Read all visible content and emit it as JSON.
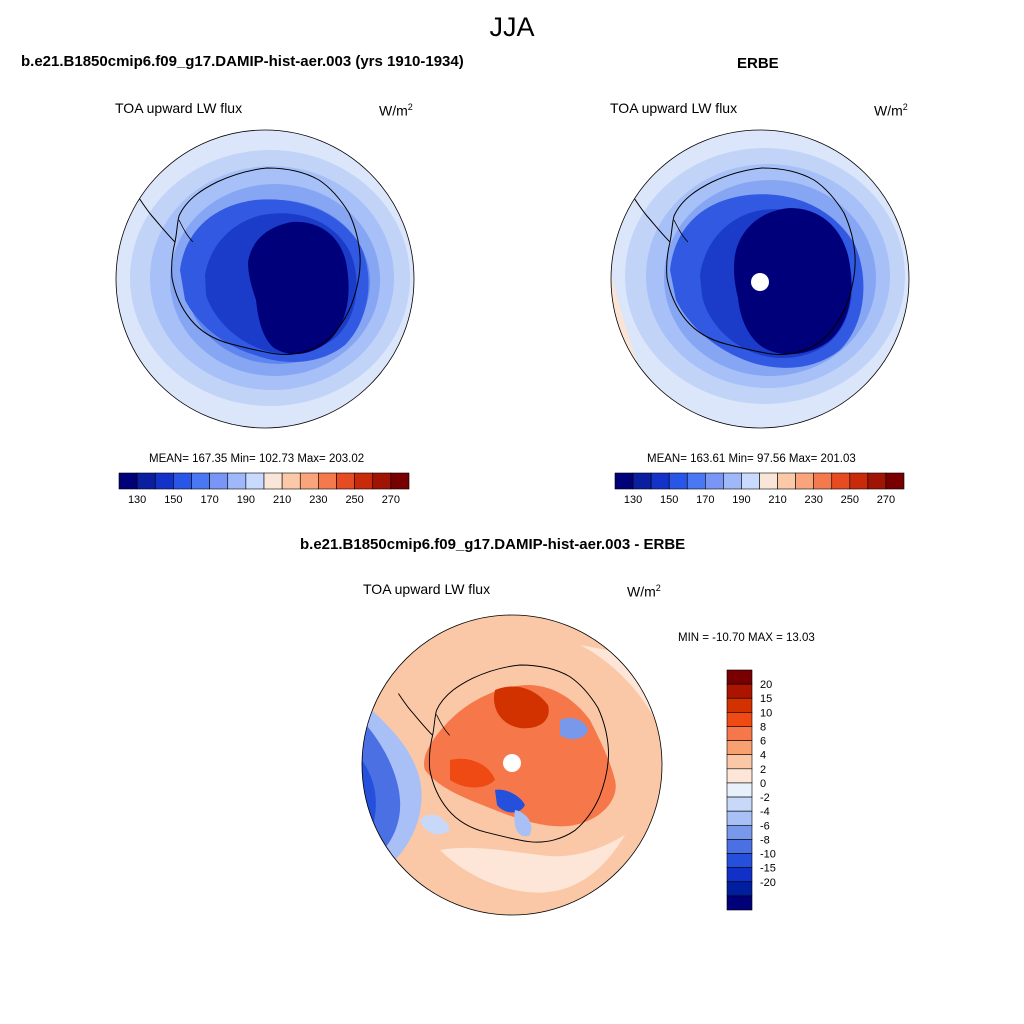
{
  "page": {
    "season": "JJA",
    "model_title": "b.e21.B1850cmip6.f09_g17.DAMIP-hist-aer.003 (yrs 1910-1934)",
    "obs_title": "ERBE",
    "diff_title": "b.e21.B1850cmip6.f09_g17.DAMIP-hist-aer.003 - ERBE"
  },
  "panels": {
    "model": {
      "variable": "TOA upward LW flux",
      "units_base": "W/m",
      "units_exp": "2",
      "stats": "MEAN= 167.35  Min= 102.73  Max= 203.02"
    },
    "obs": {
      "variable": "TOA upward LW flux",
      "units_base": "W/m",
      "units_exp": "2",
      "stats": "MEAN= 163.61  Min=  97.56  Max= 201.03"
    },
    "diff": {
      "variable": "TOA upward LW flux",
      "units_base": "W/m",
      "units_exp": "2",
      "stats": "MIN = -10.70 MAX =  13.03"
    }
  },
  "abs_colorbar": {
    "colors": [
      "#000078",
      "#0a1ea0",
      "#1432c8",
      "#2856e8",
      "#4a78f2",
      "#7896f6",
      "#a0b8fa",
      "#c8dafd",
      "#fae6d8",
      "#fbc8a8",
      "#f9a47a",
      "#f47a4e",
      "#e64b22",
      "#c82a0a",
      "#a01404",
      "#780000"
    ],
    "labels": [
      "130",
      "150",
      "170",
      "190",
      "210",
      "230",
      "250",
      "270"
    ]
  },
  "diff_colorbar": {
    "colors": [
      "#780000",
      "#aa1400",
      "#d23200",
      "#f04a14",
      "#f6784a",
      "#f8a070",
      "#fac8a6",
      "#fde6d8",
      "#e8f0fc",
      "#c8d8f8",
      "#a8c0f6",
      "#7898ec",
      "#4a70e4",
      "#2450dc",
      "#1030c8",
      "#001e9e",
      "#000078"
    ],
    "labels": [
      "20",
      "15",
      "10",
      "8",
      "6",
      "4",
      "2",
      "0",
      "-2",
      "-4",
      "-6",
      "-8",
      "-10",
      "-15",
      "-20"
    ]
  },
  "map_colors": {
    "outer_ring": "#dbe6fb",
    "ring2": "#c2d3f8",
    "ring3": "#a7c0f7",
    "ring4": "#86a6f3",
    "ring5": "#5f86ee",
    "ring6": "#3159e2",
    "ring7": "#1a3cc9",
    "core": "#00007a",
    "warm_edge": "#fbe4d4"
  }
}
